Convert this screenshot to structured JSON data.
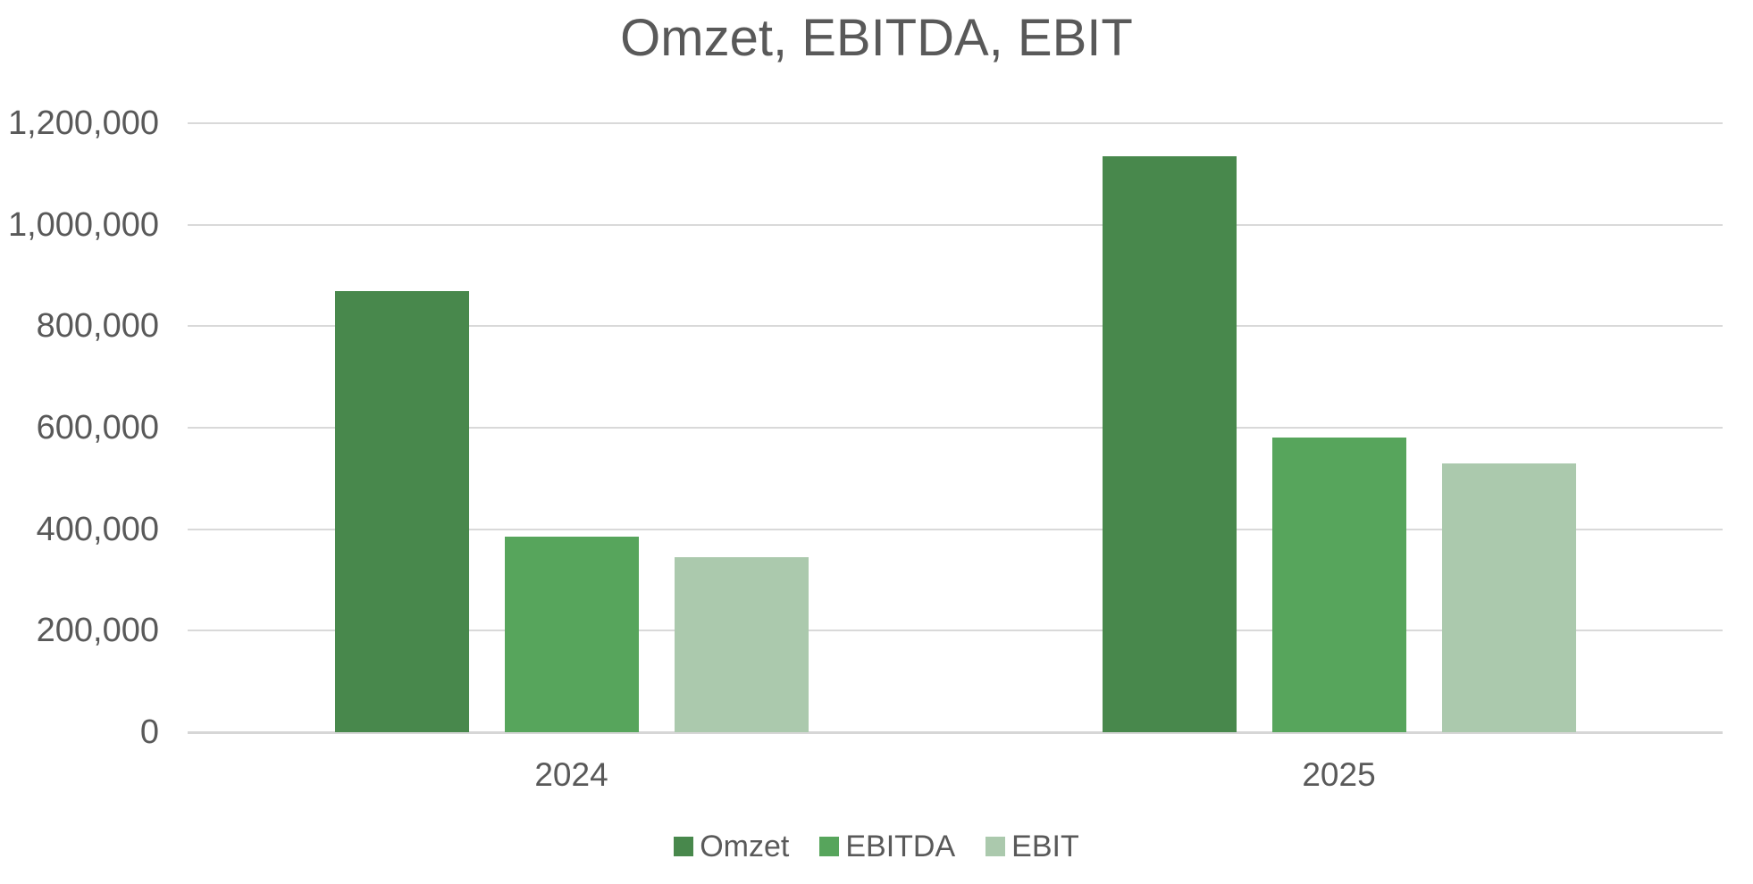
{
  "chart_data": {
    "type": "bar",
    "title": "Omzet, EBITDA, EBIT",
    "categories": [
      "2024",
      "2025"
    ],
    "series": [
      {
        "name": "Omzet",
        "color": "#48884C",
        "values": [
          870000,
          1135000
        ]
      },
      {
        "name": "EBITDA",
        "color": "#57A55C",
        "values": [
          385000,
          580000
        ]
      },
      {
        "name": "EBIT",
        "color": "#ABC9AD",
        "values": [
          345000,
          530000
        ]
      }
    ],
    "xlabel": "",
    "ylabel": "",
    "ylim": [
      0,
      1200000
    ],
    "ytick_interval": 200000,
    "y_tick_labels": [
      "0",
      "200,000",
      "400,000",
      "600,000",
      "800,000",
      "1,000,000",
      "1,200,000"
    ],
    "grid": "horizontal",
    "legend_position": "bottom",
    "colors": {
      "text": "#595959",
      "gridline": "#D9D9D9",
      "background": "#FFFFFF"
    }
  }
}
